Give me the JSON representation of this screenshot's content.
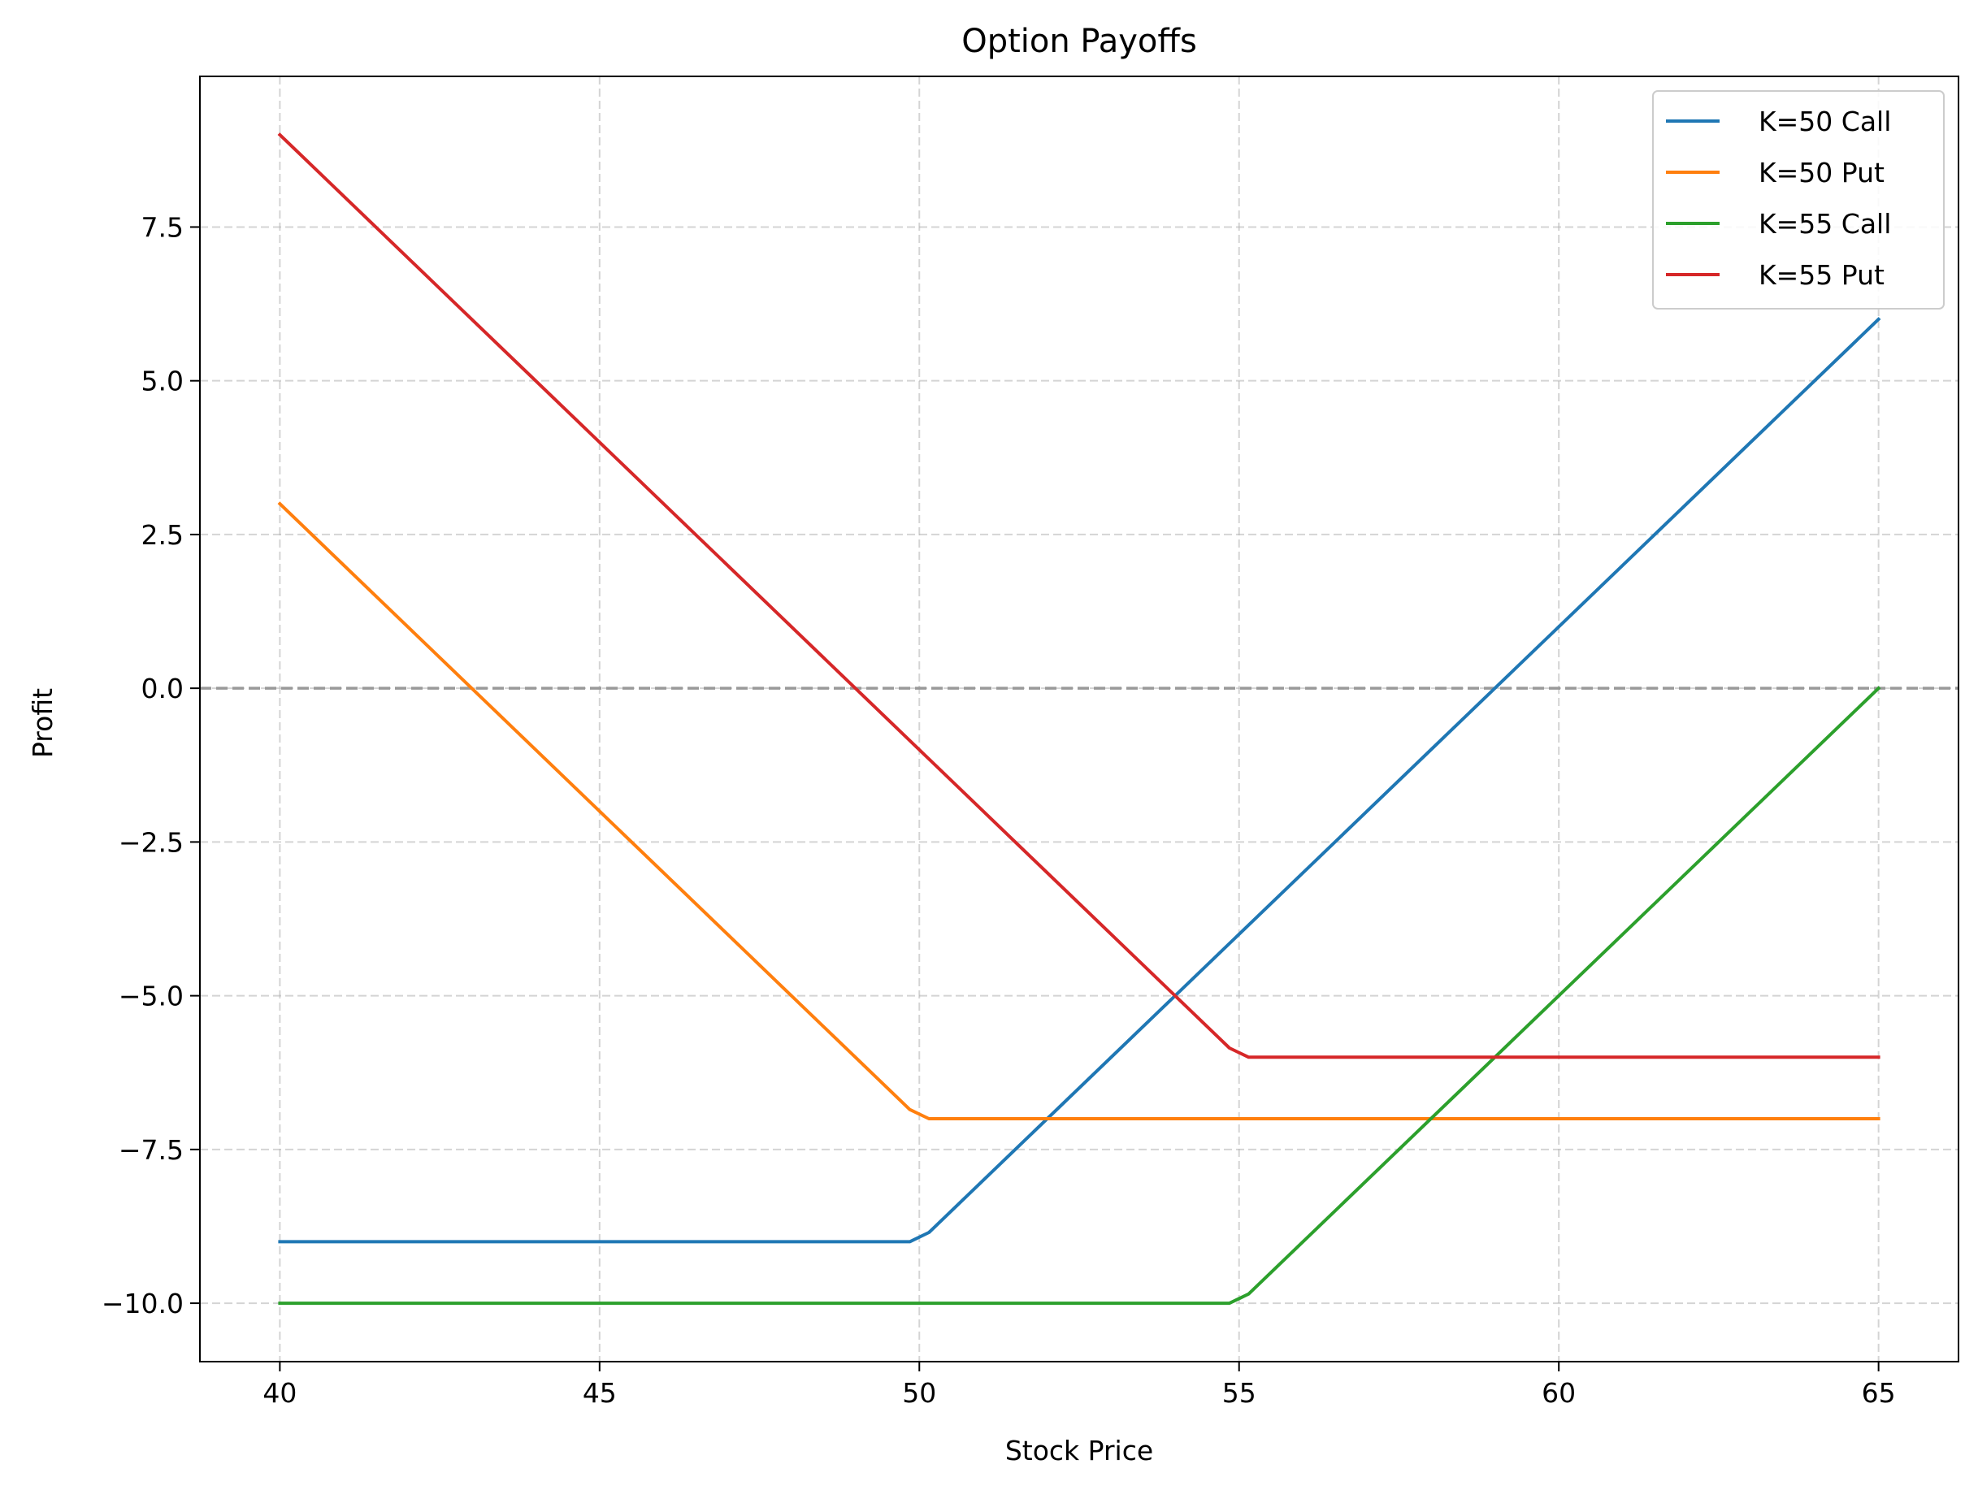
{
  "chart_data": {
    "type": "line",
    "title": "Option Payoffs",
    "xlabel": "Stock Price",
    "ylabel": "Profit",
    "xlim": [
      38.75,
      66.25
    ],
    "ylim": [
      -10.95,
      9.95
    ],
    "xticks": [
      40,
      45,
      50,
      55,
      60,
      65
    ],
    "xtick_labels": [
      "40",
      "45",
      "50",
      "55",
      "60",
      "65"
    ],
    "yticks": [
      -10.0,
      -7.5,
      -5.0,
      -2.5,
      0.0,
      2.5,
      5.0,
      7.5
    ],
    "ytick_labels": [
      "−10.0",
      "−7.5",
      "−5.0",
      "−2.5",
      "0.0",
      "2.5",
      "5.0",
      "7.5"
    ],
    "grid": true,
    "grid_style": "dashed",
    "reference_line": {
      "y": 0,
      "style": "dashed",
      "color": "#999999"
    },
    "legend_position": "top-right",
    "series": [
      {
        "name": "K=50 Call",
        "color": "#1f77b4",
        "x": [
          40,
          49.85,
          50.15,
          65
        ],
        "y": [
          -9,
          -9,
          -8.85,
          6
        ]
      },
      {
        "name": "K=50 Put",
        "color": "#ff7f0e",
        "x": [
          40,
          49.85,
          50.15,
          65
        ],
        "y": [
          3,
          -6.85,
          -7,
          -7
        ]
      },
      {
        "name": "K=55 Call",
        "color": "#2ca02c",
        "x": [
          40,
          54.85,
          55.15,
          65
        ],
        "y": [
          -10,
          -10,
          -9.85,
          0
        ]
      },
      {
        "name": "K=55 Put",
        "color": "#d62728",
        "x": [
          40,
          54.85,
          55.15,
          65
        ],
        "y": [
          9,
          -5.85,
          -6,
          -6
        ]
      }
    ]
  }
}
